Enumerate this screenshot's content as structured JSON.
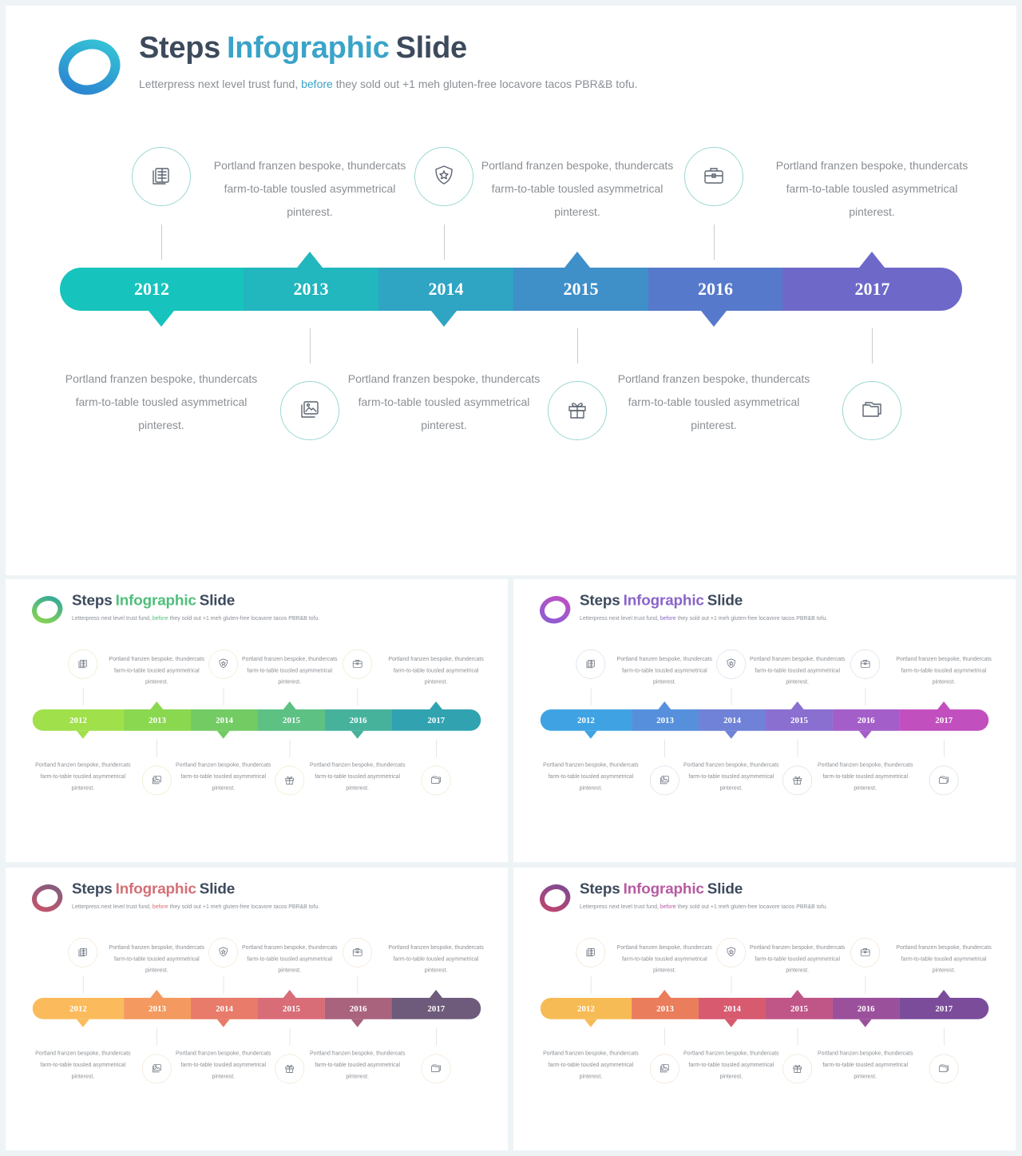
{
  "title_part1": "Steps",
  "title_part2": "Infographic",
  "title_part3": "Slide",
  "subtitle_before": "Letterpress next level trust fund,",
  "subtitle_highlight": "before",
  "subtitle_after": "they sold out +1 meh gluten-free locavore tacos PBR&B tofu.",
  "steps": [
    {
      "year": "2012",
      "text": "Portland franzen bespoke, thundercats farm-to-table tousled asymmetrical pinterest.",
      "icon": "layers-icon"
    },
    {
      "year": "2013",
      "text": "Portland franzen bespoke, thundercats farm-to-table tousled asymmetrical pinterest.",
      "icon": "image-icon"
    },
    {
      "year": "2014",
      "text": "Portland franzen bespoke, thundercats farm-to-table tousled asymmetrical pinterest.",
      "icon": "shield-star-icon"
    },
    {
      "year": "2015",
      "text": "Portland franzen bespoke, thundercats farm-to-table tousled asymmetrical pinterest.",
      "icon": "gift-icon"
    },
    {
      "year": "2016",
      "text": "Portland franzen bespoke, thundercats farm-to-table tousled asymmetrical pinterest.",
      "icon": "briefcase-icon"
    },
    {
      "year": "2017",
      "text": "Portland franzen bespoke, thundercats farm-to-table tousled asymmetrical pinterest.",
      "icon": "folder-icon"
    }
  ],
  "themes": [
    {
      "accent": "#3aa3c8",
      "logo": [
        "#2b7fd0",
        "#35c7d6"
      ],
      "colors": [
        "#17c3bd",
        "#22b6be",
        "#2fa4c3",
        "#3f8fc9",
        "#5679cb",
        "#6e69c9"
      ],
      "circle": "#9bd7d3"
    },
    {
      "accent": "#4fbf7a",
      "logo": [
        "#8fd64a",
        "#2ea6a0"
      ],
      "colors": [
        "#9fe04b",
        "#8ad84f",
        "#72cc63",
        "#5dc184",
        "#46b29c",
        "#31a3b0"
      ],
      "circle": "#d4e7a9"
    },
    {
      "accent": "#8a64c9",
      "logo": [
        "#8a5dd2",
        "#c04fc2"
      ],
      "colors": [
        "#3fa3e3",
        "#5690dc",
        "#6f82d7",
        "#8a6fd1",
        "#a45ec9",
        "#c24fbe"
      ],
      "circle": "#c9cde0"
    },
    {
      "accent": "#d46e75",
      "logo": [
        "#c9546a",
        "#7e5d80"
      ],
      "colors": [
        "#fbbb5d",
        "#f49a60",
        "#e87b69",
        "#d86d78",
        "#a9637d",
        "#6e5b7c"
      ],
      "circle": "#ead8b6"
    },
    {
      "accent": "#b85aa0",
      "logo": [
        "#c2456e",
        "#7a4a95"
      ],
      "colors": [
        "#f7bb55",
        "#ea7d5c",
        "#d75a6f",
        "#c05688",
        "#9b509c",
        "#7a4c9a"
      ],
      "circle": "#e8d3b7"
    }
  ]
}
